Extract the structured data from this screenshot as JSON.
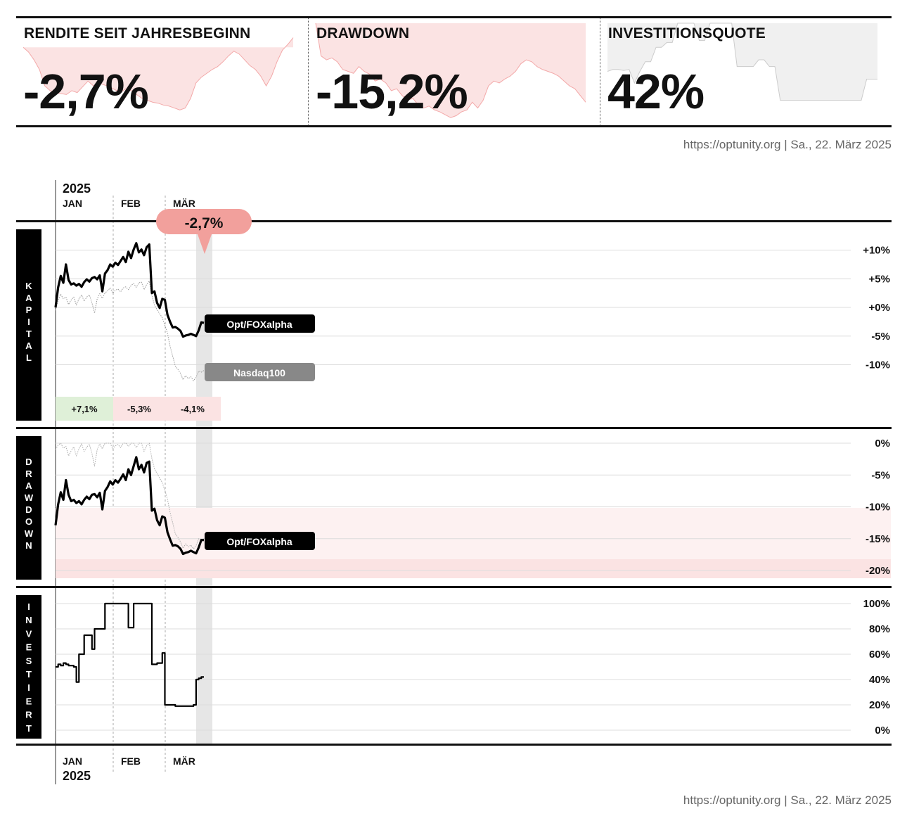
{
  "source_line": "https://optunity.org | Sa., 22. März 2025",
  "kpis": [
    {
      "title": "RENDITE SEIT JAHRESBEGINN",
      "value": "-2,7%",
      "fill": "#fbe3e3",
      "stroke": "#f3a9a9",
      "baseline": 0.75,
      "spark": [
        0.75,
        0.7,
        0.62,
        0.52,
        0.35,
        0.3,
        0.28,
        0.27,
        0.26,
        0.3,
        0.28,
        0.34,
        0.4,
        0.35,
        0.38,
        0.36,
        0.34,
        0.31,
        0.28,
        0.32,
        0.3,
        0.26,
        0.22,
        0.2,
        0.18,
        0.17,
        0.15,
        0.14,
        0.12,
        0.1,
        0.12,
        0.22,
        0.38,
        0.44,
        0.48,
        0.52,
        0.55,
        0.6,
        0.66,
        0.71,
        0.68,
        0.62,
        0.56,
        0.52,
        0.45,
        0.35,
        0.45,
        0.6,
        0.72,
        0.78,
        0.85
      ]
    },
    {
      "title": "DRAWDOWN",
      "value": "-15,2%",
      "fill": "#fbe3e3",
      "stroke": "#f3a9a9",
      "baseline": 1.0,
      "spark": [
        1.0,
        0.66,
        0.62,
        0.64,
        0.6,
        0.52,
        0.5,
        0.48,
        0.55,
        0.5,
        0.47,
        0.4,
        0.42,
        0.38,
        0.3,
        0.32,
        0.25,
        0.2,
        0.22,
        0.15,
        0.12,
        0.14,
        0.1,
        0.08,
        0.05,
        0.02,
        0.04,
        0.08,
        0.1,
        0.18,
        0.12,
        0.2,
        0.35,
        0.4,
        0.38,
        0.42,
        0.45,
        0.5,
        0.58,
        0.62,
        0.6,
        0.55,
        0.52,
        0.5,
        0.48,
        0.45,
        0.4,
        0.35,
        0.32,
        0.25,
        0.18
      ]
    },
    {
      "title": "INVESTITIONSQUOTE",
      "value": "42%",
      "fill": "#f0f0f0",
      "stroke": "#cccccc",
      "baseline": 1.0,
      "spark": [
        0.5,
        0.52,
        0.52,
        0.51,
        0.52,
        0.38,
        0.5,
        0.6,
        0.6,
        0.75,
        0.75,
        0.8,
        0.8,
        1.0,
        1.0,
        1.0,
        1.0,
        0.82,
        0.82,
        1.0,
        1.0,
        1.0,
        1.0,
        1.0,
        0.55,
        0.55,
        0.55,
        0.55,
        0.62,
        0.62,
        0.55,
        0.55,
        0.2,
        0.2,
        0.2,
        0.2,
        0.2,
        0.2,
        0.2,
        0.2,
        0.2,
        0.2,
        0.2,
        0.2,
        0.2,
        0.2,
        0.2,
        0.2,
        0.42,
        0.42,
        0.42
      ]
    }
  ],
  "axis": {
    "year": "2025",
    "months": [
      "JAN",
      "FEB",
      "MÄR"
    ]
  },
  "callout": {
    "value": "-2,7%"
  },
  "panels": {
    "capital": {
      "label": "KAPITAL",
      "ticks": [
        "+10%",
        "+5%",
        "+0%",
        "-5%",
        "-10%"
      ],
      "tick_values": [
        10,
        5,
        0,
        -5,
        -10
      ],
      "monthly_returns": [
        {
          "label": "+7,1%",
          "color": "#dff0d8"
        },
        {
          "label": "-5,3%",
          "color": "#fbe3e3"
        },
        {
          "label": "-4,1%",
          "color": "#fbe3e3"
        }
      ]
    },
    "drawdown": {
      "label": "DRAWDOWN",
      "ticks": [
        "0%",
        "-5%",
        "-10%",
        "-15%",
        "-20%"
      ],
      "tick_values": [
        0,
        -5,
        -10,
        -15,
        -20
      ]
    },
    "invested": {
      "label": "INVESTIERT",
      "ticks": [
        "100%",
        "80%",
        "60%",
        "40%",
        "20%",
        "0%"
      ],
      "tick_values": [
        100,
        80,
        60,
        40,
        20,
        0
      ]
    }
  },
  "chart_data": [
    {
      "type": "line",
      "title": "KAPITAL",
      "x_labels": [
        "JAN",
        "FEB",
        "MÄR"
      ],
      "ylim": [
        -15,
        13
      ],
      "series": [
        {
          "name": "Opt/FOXalpha",
          "color": "#000000",
          "values": [
            0,
            3.5,
            5.5,
            4.3,
            7.5,
            4.8,
            4,
            4.2,
            3.8,
            4.1,
            3.6,
            4.4,
            4.9,
            4.5,
            5.1,
            5.3,
            4.9,
            5.6,
            2.8,
            5.9,
            6.5,
            7.5,
            7.1,
            7.8,
            7.4,
            8.1,
            8.8,
            7.9,
            9.7,
            8.6,
            10.1,
            11.2,
            9.6,
            10.1,
            9.1,
            10.5,
            11,
            2.5,
            2.8,
            0.8,
            -0.1,
            1.5,
            1.3,
            -1.3,
            -2.5,
            -3.5,
            -3.4,
            -3.7,
            -4.1,
            -5.1,
            -4.9,
            -4.8,
            -4.6,
            -4.8,
            -5.0,
            -4.0,
            -2.6,
            -2.7
          ]
        },
        {
          "name": "Nasdaq100",
          "color": "#888888",
          "values": [
            -0.5,
            1.2,
            2.3,
            1.5,
            1.8,
            0.5,
            1.3,
            1.8,
            0.4,
            1.5,
            2.2,
            1.1,
            1.8,
            2.2,
            0.8,
            -1.0,
            1.5,
            2.4,
            1.6,
            2.5,
            2.9,
            3.4,
            2.5,
            3.0,
            3.2,
            2.7,
            3.4,
            3.6,
            3.1,
            3.8,
            4.2,
            3.5,
            4.3,
            4.4,
            3.1,
            4.0,
            4.6,
            2.1,
            0.4,
            -0.4,
            -1.1,
            -1.8,
            -3.1,
            -4.5,
            -6.8,
            -8.5,
            -10.2,
            -10.8,
            -11.5,
            -12.6,
            -11.9,
            -12.4,
            -12.1,
            -12.8,
            -12.2,
            -11.1,
            -11.3,
            -11.0
          ]
        }
      ]
    },
    {
      "type": "line",
      "title": "DRAWDOWN",
      "x_labels": [
        "JAN",
        "FEB",
        "MÄR"
      ],
      "ylim": [
        -21,
        0.5
      ],
      "series": [
        {
          "name": "Opt/FOXalpha",
          "color": "#000000",
          "values": [
            -12.9,
            -9.6,
            -7.7,
            -8.9,
            -5.8,
            -8.1,
            -9.1,
            -8.9,
            -9.4,
            -9.1,
            -9.6,
            -8.9,
            -8.4,
            -8.8,
            -8.1,
            -8.0,
            -8.5,
            -7.8,
            -10.4,
            -7.5,
            -6.9,
            -6.0,
            -6.5,
            -5.8,
            -6.2,
            -5.6,
            -4.9,
            -5.8,
            -4.1,
            -5.0,
            -3.6,
            -2.2,
            -4.1,
            -3.4,
            -4.6,
            -3.1,
            -2.9,
            -10.6,
            -10.3,
            -12.1,
            -12.9,
            -11.5,
            -11.7,
            -14.0,
            -15.1,
            -16.1,
            -16.0,
            -16.2,
            -16.6,
            -17.4,
            -17.2,
            -17.1,
            -16.9,
            -17.1,
            -17.3,
            -16.4,
            -15.2,
            -15.2
          ]
        },
        {
          "name": "Nasdaq100",
          "color": "#999999",
          "values": [
            -1.0,
            -0.3,
            0,
            -0.8,
            -0.5,
            -2.0,
            -1.2,
            -0.6,
            -2.0,
            -0.9,
            -0.1,
            -1.3,
            -0.6,
            -0.2,
            -1.6,
            -3.6,
            -1.0,
            -0.1,
            -0.9,
            0,
            0,
            0,
            -0.9,
            -0.4,
            -0.2,
            -0.7,
            0,
            0,
            -0.5,
            0,
            0,
            -0.7,
            0,
            0,
            -1.3,
            -0.4,
            0,
            -2.4,
            -4.0,
            -4.8,
            -5.5,
            -6.2,
            -7.4,
            -8.8,
            -10.9,
            -12.5,
            -14.2,
            -14.8,
            -15.5,
            -16.5,
            -15.8,
            -16.3,
            -16.0,
            -16.6,
            -16.1,
            -15.0,
            -15.2,
            -15.0
          ]
        }
      ],
      "bands": [
        {
          "from": -20,
          "to": -10
        },
        {
          "from": -21,
          "to": -17.6
        }
      ]
    },
    {
      "type": "line",
      "title": "INVESTIERT",
      "x_labels": [
        "JAN",
        "FEB",
        "MÄR"
      ],
      "ylim": [
        0,
        100
      ],
      "series": [
        {
          "name": "Investitionsquote",
          "color": "#000000",
          "values": [
            50,
            52,
            51,
            53,
            52,
            51,
            51,
            50,
            38,
            60,
            60,
            75,
            75,
            75,
            64,
            80,
            80,
            80,
            80,
            100,
            100,
            100,
            100,
            100,
            100,
            100,
            100,
            100,
            81,
            81,
            100,
            100,
            100,
            100,
            100,
            100,
            100,
            52,
            52,
            53,
            53,
            61,
            20,
            20,
            20,
            20,
            19,
            19,
            19,
            19,
            19,
            19,
            19,
            20,
            40,
            41,
            42,
            42
          ]
        }
      ]
    }
  ]
}
